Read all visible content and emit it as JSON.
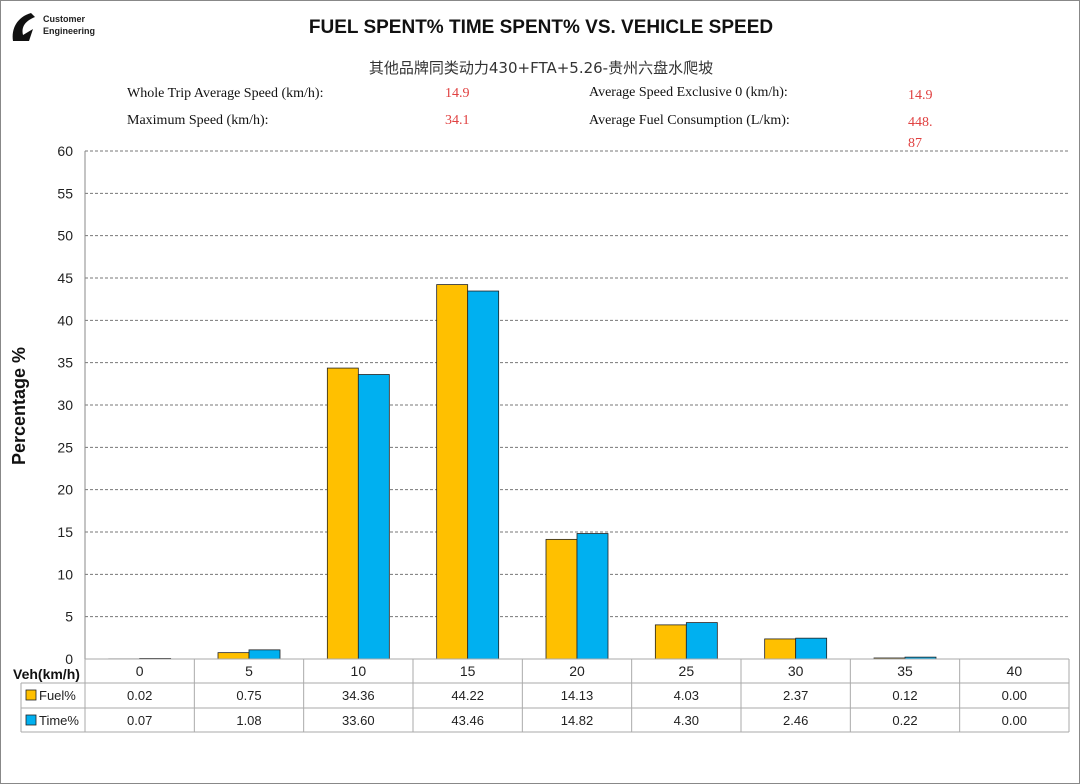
{
  "logo": {
    "text": "Customer Engineering",
    "line1": "Customer",
    "line2": "Engineering"
  },
  "chart_data": {
    "type": "bar",
    "title": "FUEL SPENT% TIME SPENT% VS. VEHICLE SPEED",
    "subtitle": "其他品牌同类动力430+FTA+5.26-贵州六盘水爬坡",
    "ylabel": "Percentage %",
    "xlabel": "Veh(km/h)",
    "ylim": [
      0,
      60
    ],
    "yticks": [
      0,
      5,
      10,
      15,
      20,
      25,
      30,
      35,
      40,
      45,
      50,
      55,
      60
    ],
    "grid": true,
    "categories": [
      "0",
      "5",
      "10",
      "15",
      "20",
      "25",
      "30",
      "35",
      "40"
    ],
    "series": [
      {
        "name": "Fuel%",
        "color": "#FFC000",
        "values": [
          0.02,
          0.75,
          34.36,
          44.22,
          14.13,
          4.03,
          2.37,
          0.12,
          0.0
        ],
        "labels": [
          "0.02",
          "0.75",
          "34.36",
          "44.22",
          "14.13",
          "4.03",
          "2.37",
          "0.12",
          "0.00"
        ]
      },
      {
        "name": "Time%",
        "color": "#00B0F0",
        "values": [
          0.07,
          1.08,
          33.6,
          43.46,
          14.82,
          4.3,
          2.46,
          0.22,
          0.0
        ],
        "labels": [
          "0.07",
          "1.08",
          "33.60",
          "43.46",
          "14.82",
          "4.30",
          "2.46",
          "0.22",
          "0.00"
        ]
      }
    ],
    "legend": "data-table"
  },
  "stats": {
    "whole_trip_label": "Whole Trip Average Speed (km/h):",
    "whole_trip_value": "14.9",
    "max_speed_label": "Maximum Speed (km/h):",
    "max_speed_value": "34.1",
    "avg_excl0_label": "Average Speed Exclusive 0 (km/h):",
    "avg_excl0_value": "14.9",
    "avg_fuel_label": "Average Fuel Consumption (L/km):",
    "avg_fuel_value_line1": "448.",
    "avg_fuel_value_line2": "87"
  }
}
